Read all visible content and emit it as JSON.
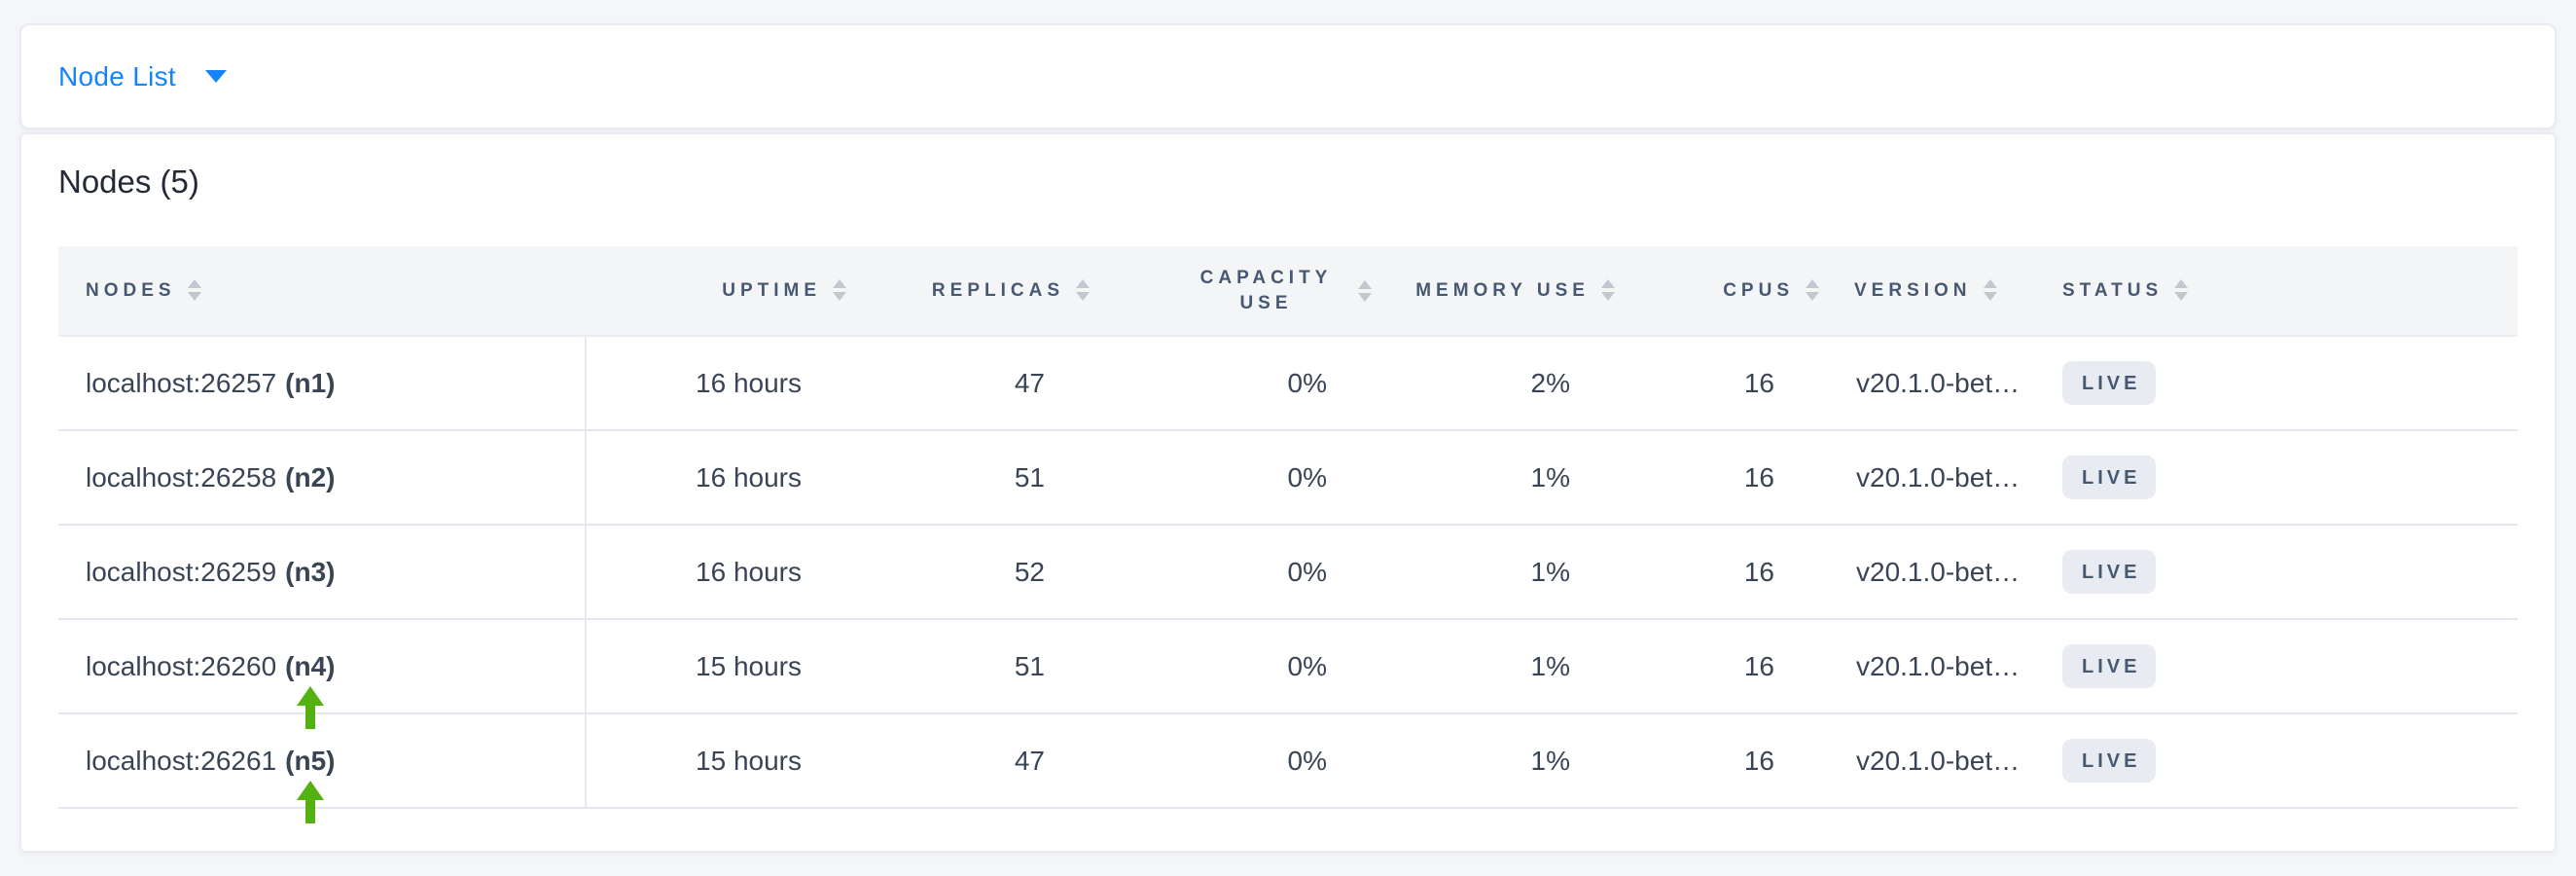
{
  "topbar": {
    "dropdown_label": "Node List"
  },
  "panel": {
    "title": "Nodes (5)",
    "table": {
      "columns": [
        {
          "label": "NODES",
          "align": "left"
        },
        {
          "label": "UPTIME",
          "align": "right"
        },
        {
          "label": "REPLICAS",
          "align": "right"
        },
        {
          "label": "CAPACITY USE",
          "align": "right"
        },
        {
          "label": "MEMORY USE",
          "align": "right"
        },
        {
          "label": "CPUS",
          "align": "right"
        },
        {
          "label": "VERSION",
          "align": "left"
        },
        {
          "label": "STATUS",
          "align": "left"
        }
      ],
      "rows": [
        {
          "address": "localhost:26257",
          "node_id": "(n1)",
          "uptime": "16 hours",
          "replicas": "47",
          "capacity_use": "0%",
          "memory_use": "2%",
          "cpus": "16",
          "version": "v20.1.0-bet…",
          "status": "LIVE"
        },
        {
          "address": "localhost:26258",
          "node_id": "(n2)",
          "uptime": "16 hours",
          "replicas": "51",
          "capacity_use": "0%",
          "memory_use": "1%",
          "cpus": "16",
          "version": "v20.1.0-bet…",
          "status": "LIVE"
        },
        {
          "address": "localhost:26259",
          "node_id": "(n3)",
          "uptime": "16 hours",
          "replicas": "52",
          "capacity_use": "0%",
          "memory_use": "1%",
          "cpus": "16",
          "version": "v20.1.0-bet…",
          "status": "LIVE"
        },
        {
          "address": "localhost:26260",
          "node_id": "(n4)",
          "uptime": "15 hours",
          "replicas": "51",
          "capacity_use": "0%",
          "memory_use": "1%",
          "cpus": "16",
          "version": "v20.1.0-bet…",
          "status": "LIVE"
        },
        {
          "address": "localhost:26261",
          "node_id": "(n5)",
          "uptime": "15 hours",
          "replicas": "47",
          "capacity_use": "0%",
          "memory_use": "1%",
          "cpus": "16",
          "version": "v20.1.0-bet…",
          "status": "LIVE"
        }
      ],
      "annotations": {
        "arrow_targets": [
          "n4",
          "n5"
        ]
      }
    }
  },
  "colors": {
    "accent_blue": "#1584FB",
    "arrow_green": "#53B112",
    "header_text": "#475872",
    "body_text": "#394455",
    "badge_bg": "#E8ECF2",
    "page_bg": "#F4F6FA"
  }
}
